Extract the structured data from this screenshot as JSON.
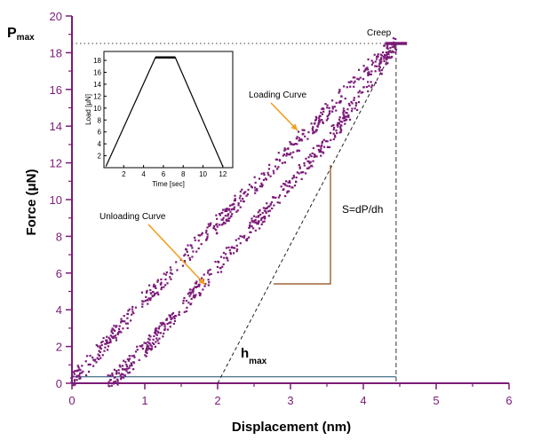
{
  "chart_data": {
    "type": "scatter",
    "xlabel": "Displacement (nm)",
    "ylabel": "Force (μN)",
    "xlim": [
      0,
      6
    ],
    "ylim": [
      0,
      20
    ],
    "x_ticks": [
      "0",
      "1",
      "2",
      "3",
      "4",
      "5",
      "6"
    ],
    "y_ticks": [
      "0",
      "2",
      "4",
      "6",
      "8",
      "10",
      "12",
      "14",
      "16",
      "18",
      "20"
    ],
    "grid": false,
    "series": [
      {
        "name": "Loading Curve",
        "color": "#7b1a78",
        "x": [
          0.0,
          0.2,
          0.4,
          0.6,
          0.8,
          1.0,
          1.2,
          1.4,
          1.6,
          1.8,
          2.0,
          2.2,
          2.4,
          2.6,
          2.8,
          3.0,
          3.2,
          3.4,
          3.6,
          3.8,
          4.0,
          4.2,
          4.35,
          4.45
        ],
        "y": [
          0.1,
          1.0,
          1.9,
          2.8,
          3.7,
          4.6,
          5.4,
          6.3,
          7.1,
          7.9,
          8.7,
          9.5,
          10.3,
          11.1,
          11.9,
          12.7,
          13.5,
          14.3,
          15.2,
          16.0,
          16.9,
          17.6,
          18.2,
          18.5
        ]
      },
      {
        "name": "Creep",
        "color": "#7b1a78",
        "x": [
          4.3,
          4.4,
          4.5,
          4.6
        ],
        "y": [
          18.5,
          18.5,
          18.5,
          18.5
        ]
      },
      {
        "name": "Unloading Curve",
        "color": "#7b1a78",
        "x": [
          0.5,
          0.7,
          0.9,
          1.1,
          1.3,
          1.5,
          1.7,
          1.9,
          2.1,
          2.3,
          2.5,
          2.7,
          2.9,
          3.1,
          3.3,
          3.5,
          3.7,
          3.9,
          4.1,
          4.3,
          4.45
        ],
        "y": [
          0.0,
          0.7,
          1.5,
          2.3,
          3.2,
          4.1,
          5.0,
          5.9,
          6.8,
          7.7,
          8.6,
          9.5,
          10.4,
          11.3,
          12.2,
          13.2,
          14.2,
          15.3,
          16.4,
          17.6,
          18.5
        ]
      }
    ],
    "annotations": {
      "pmax_label": "P",
      "pmax_sub": "max",
      "pmax_value": 18.5,
      "hmax_label": "h",
      "hmax_sub": "max",
      "hmax_value": 4.45,
      "creep": "Creep",
      "loading": "Loading Curve",
      "unloading": "Unloading Curve",
      "stiffness": "S=dP/dh",
      "tangent_x": [
        2.0,
        4.45
      ],
      "tangent_y": [
        0.0,
        18.5
      ]
    },
    "inset": {
      "type": "line",
      "xlabel": "Time [sec]",
      "ylabel": "Load [μN]",
      "xlim": [
        0,
        13
      ],
      "ylim": [
        0,
        19.5
      ],
      "x_ticks": [
        "2",
        "4",
        "6",
        "8",
        "10",
        "12"
      ],
      "y_ticks": [
        "2",
        "4",
        "6",
        "8",
        "10",
        "12",
        "14",
        "16",
        "18"
      ],
      "x": [
        0.2,
        5.2,
        7.2,
        12.0
      ],
      "y": [
        0.2,
        18.5,
        18.5,
        0.2
      ],
      "color": "#000000"
    }
  }
}
